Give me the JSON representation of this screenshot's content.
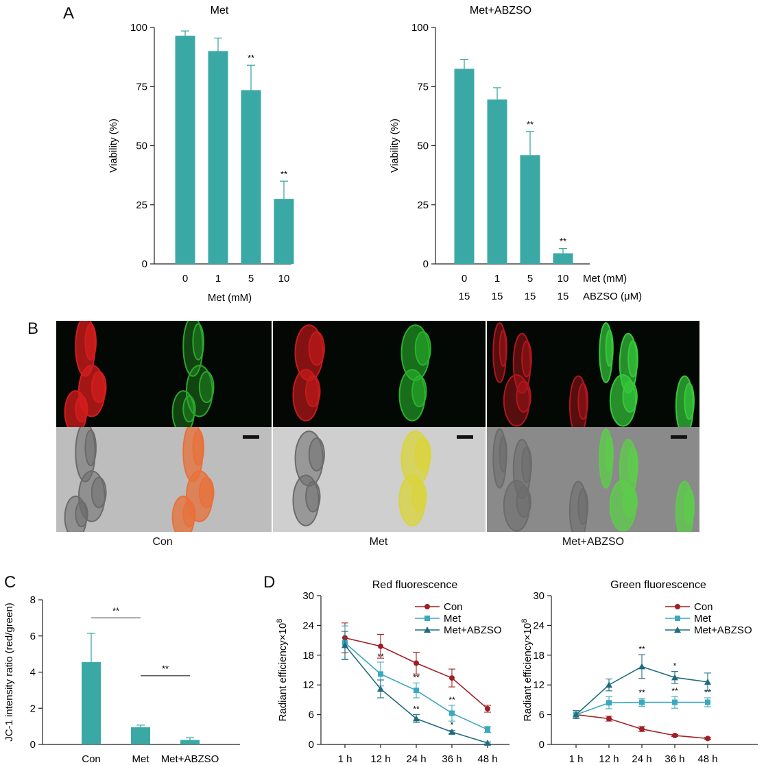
{
  "figure": {
    "panels": {
      "A": "A",
      "B": "B",
      "C": "C",
      "D": "D"
    }
  },
  "chart_data": [
    {
      "id": "A-left",
      "type": "bar",
      "title": "Met",
      "xlabel": "Met (mM)",
      "ylabel": "Viability (%)",
      "ylim": [
        0,
        100
      ],
      "yticks": [
        0,
        25,
        50,
        75,
        100
      ],
      "categories": [
        "0",
        "1",
        "5",
        "10"
      ],
      "values": [
        96.5,
        90,
        73.5,
        27.5
      ],
      "errors": [
        2,
        5.5,
        10.5,
        7.5
      ],
      "annotations": [
        "",
        "",
        "**",
        "**"
      ],
      "color": "#3aa9a6",
      "grid": false
    },
    {
      "id": "A-right",
      "type": "bar",
      "title": "Met+ABZSO",
      "ylabel": "Viability (%)",
      "ylim": [
        0,
        100
      ],
      "yticks": [
        0,
        25,
        50,
        75,
        100
      ],
      "categories": [
        "0",
        "1",
        "5",
        "10"
      ],
      "second_row": [
        "15",
        "15",
        "15",
        "15"
      ],
      "row_labels": [
        "Met (mM)",
        "ABZSO (μM)"
      ],
      "values": [
        82.5,
        69.5,
        46,
        4.5
      ],
      "errors": [
        4,
        5,
        10,
        2
      ],
      "annotations": [
        "",
        "",
        "**",
        "**"
      ],
      "color": "#3aa9a6",
      "grid": false
    },
    {
      "id": "C",
      "type": "bar",
      "ylabel": "JC-1 intensity ratio (red/green)",
      "ylim": [
        0,
        8
      ],
      "yticks": [
        0,
        2,
        4,
        6,
        8
      ],
      "categories": [
        "Con",
        "Met",
        "Met+ABZSO"
      ],
      "values": [
        4.55,
        0.95,
        0.25
      ],
      "errors": [
        1.6,
        0.12,
        0.12
      ],
      "brackets": [
        {
          "from": 0,
          "to": 1,
          "y": 7.0,
          "label": "**"
        },
        {
          "from": 1,
          "to": 2,
          "y": 3.8,
          "label": "**"
        }
      ],
      "color": "#3aa9a6",
      "grid": false
    },
    {
      "id": "D-left",
      "type": "line",
      "title": "Red fluorescence",
      "ylabel": "Radiant efficiency×10",
      "ylabel_sup": "8",
      "ylim": [
        0,
        30
      ],
      "yticks": [
        0,
        6,
        12,
        18,
        24,
        30
      ],
      "x": [
        "1 h",
        "12 h",
        "24 h",
        "36 h",
        "48 h"
      ],
      "legend_position": "top-right",
      "series": [
        {
          "name": "Con",
          "color": "#a11f24",
          "marker": "circle",
          "values": [
            21.5,
            19.8,
            16.4,
            13.4,
            7.2
          ],
          "errors": [
            3.0,
            2.4,
            2.2,
            1.8,
            0.7
          ],
          "annotations": [
            "",
            "",
            "",
            "",
            ""
          ]
        },
        {
          "name": "Met",
          "color": "#3aa9bf",
          "marker": "square",
          "values": [
            20.5,
            14.2,
            10.9,
            6.3,
            3.0
          ],
          "errors": [
            3.4,
            2.4,
            1.5,
            1.6,
            0.6
          ],
          "annotations": [
            "",
            "**",
            "**",
            "**",
            ""
          ]
        },
        {
          "name": "Met+ABZSO",
          "color": "#1f6c7d",
          "marker": "triangle",
          "values": [
            20.0,
            11.2,
            5.2,
            2.5,
            0.3
          ],
          "errors": [
            2.8,
            1.8,
            0.8,
            0.3,
            0.2
          ],
          "annotations": [
            "",
            "",
            "**",
            "*",
            ""
          ]
        }
      ]
    },
    {
      "id": "D-right",
      "type": "line",
      "title": "Green fluorescence",
      "ylabel": "Radiant efficiency×10",
      "ylabel_sup": "8",
      "ylim": [
        0,
        30
      ],
      "yticks": [
        0,
        6,
        12,
        18,
        24,
        30
      ],
      "x": [
        "1 h",
        "12 h",
        "24 h",
        "36 h",
        "48 h"
      ],
      "legend_position": "top-right",
      "series": [
        {
          "name": "Con",
          "color": "#a11f24",
          "marker": "circle",
          "values": [
            6.0,
            5.2,
            3.1,
            1.8,
            1.2
          ],
          "errors": [
            0.8,
            0.5,
            0.5,
            0.2,
            0.2
          ],
          "annotations": [
            "",
            "",
            "",
            "",
            ""
          ]
        },
        {
          "name": "Met",
          "color": "#3aa9bf",
          "marker": "square",
          "values": [
            6.0,
            8.4,
            8.5,
            8.5,
            8.5
          ],
          "errors": [
            0.8,
            1.2,
            0.8,
            1.2,
            0.9
          ],
          "annotations": [
            "",
            "",
            "**",
            "**",
            "**"
          ]
        },
        {
          "name": "Met+ABZSO",
          "color": "#1f6c7d",
          "marker": "triangle",
          "values": [
            6.0,
            12.0,
            15.7,
            13.5,
            12.6
          ],
          "errors": [
            0.8,
            1.2,
            2.4,
            1.2,
            1.8
          ],
          "annotations": [
            "",
            "",
            "**",
            "*",
            ""
          ]
        }
      ]
    }
  ],
  "micrographs": {
    "captions": [
      "Con",
      "Met",
      "Met+ABZSO"
    ],
    "groups": [
      {
        "name": "Con",
        "red": "#d41c1c",
        "green": "#2aa72a",
        "merge": "#e8703a",
        "red_level": 1.0,
        "green_level": 0.35
      },
      {
        "name": "Met",
        "red": "#c81a1a",
        "green": "#28b22c",
        "merge": "#d9d43a",
        "red_level": 0.8,
        "green_level": 0.8
      },
      {
        "name": "Met+ABZSO",
        "red": "#b0161c",
        "green": "#35c83a",
        "merge": "#5ccc4a",
        "red_level": 0.45,
        "green_level": 1.0
      }
    ]
  }
}
